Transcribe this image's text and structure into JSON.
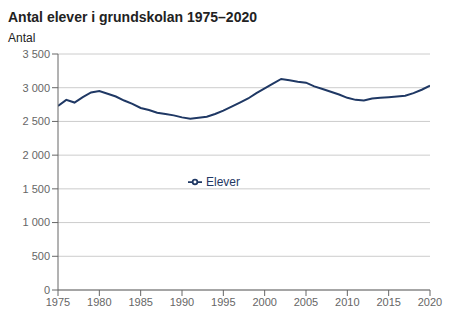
{
  "chart_data": {
    "type": "line",
    "title": "Antal elever i grundskolan 1975–2020",
    "ylabel": "Antal",
    "x": [
      1975,
      1976,
      1977,
      1978,
      1979,
      1980,
      1981,
      1982,
      1983,
      1984,
      1985,
      1986,
      1987,
      1988,
      1989,
      1990,
      1991,
      1992,
      1993,
      1994,
      1995,
      1996,
      1997,
      1998,
      1999,
      2000,
      2001,
      2002,
      2003,
      2004,
      2005,
      2006,
      2007,
      2008,
      2009,
      2010,
      2011,
      2012,
      2013,
      2014,
      2015,
      2016,
      2017,
      2018,
      2019,
      2020
    ],
    "series": [
      {
        "name": "Elever",
        "color": "#1F3864",
        "values": [
          2730,
          2820,
          2780,
          2860,
          2930,
          2950,
          2910,
          2870,
          2810,
          2760,
          2700,
          2670,
          2630,
          2610,
          2590,
          2560,
          2540,
          2555,
          2570,
          2610,
          2660,
          2720,
          2780,
          2840,
          2920,
          2990,
          3060,
          3130,
          3110,
          3090,
          3075,
          3020,
          2980,
          2940,
          2900,
          2850,
          2820,
          2810,
          2840,
          2850,
          2860,
          2870,
          2880,
          2920,
          2970,
          3030
        ]
      }
    ],
    "xlim": [
      1975,
      2020
    ],
    "xticks": [
      1975,
      1980,
      1985,
      1990,
      1995,
      2000,
      2005,
      2010,
      2015,
      2020
    ],
    "ylim": [
      0,
      3500
    ],
    "yticks": [
      0,
      500,
      {
        "value": 1000,
        "label": "1 000"
      },
      {
        "value": 1500,
        "label": "1 500"
      },
      {
        "value": 2000,
        "label": "2 000"
      },
      {
        "value": 2500,
        "label": "2 500"
      },
      {
        "value": 3000,
        "label": "3 000"
      },
      {
        "value": 3500,
        "label": "3 500"
      }
    ],
    "grid": true,
    "legend": "center"
  }
}
